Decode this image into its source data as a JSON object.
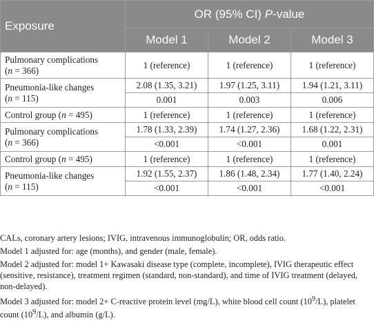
{
  "table": {
    "header": {
      "exposure": "Exposure",
      "or_pre": "OR (95% CI) ",
      "or_italic": "P",
      "or_post": "-value",
      "models": [
        "Model 1",
        "Model 2",
        "Model 3"
      ]
    },
    "rows": {
      "r1": {
        "label": "Pulmonary complications",
        "n_pre": "(",
        "n_var": "n",
        "n_post": " = 366)",
        "v": [
          "1 (reference)",
          "1 (reference)",
          "1 (reference)"
        ]
      },
      "r2": {
        "label": "Pneumonia-like changes",
        "n_pre": "(",
        "n_var": "n",
        "n_post": " = 115)",
        "or": [
          "2.08 (1.35, 3.21)",
          "1.97 (1.25, 3.11)",
          "1.94 (1.21, 3.11)"
        ],
        "p": [
          "0.001",
          "0.003",
          "0.006"
        ]
      },
      "r3": {
        "label_pre": "Control group (",
        "n_var": "n",
        "label_post": " = 495)",
        "v": [
          "1 (reference)",
          "1 (reference)",
          "1 (reference)"
        ]
      },
      "r4": {
        "label": "Pulmonary complications",
        "n_pre": "(",
        "n_var": "n",
        "n_post": " = 366)",
        "or": [
          "1.78 (1.33, 2.39)",
          "1.74 (1.27, 2.36)",
          "1.68 (1.22, 2.31)"
        ],
        "p": [
          "<0.001",
          "<0.001",
          "0.001"
        ]
      },
      "r5": {
        "label_pre": "Control group (",
        "n_var": "n",
        "label_post": " = 495)",
        "v": [
          "1 (reference)",
          "1 (reference)",
          "1 (reference)"
        ]
      },
      "r6": {
        "label": "Pneumonia-like changes",
        "n_pre": "(",
        "n_var": "n",
        "n_post": " = 115)",
        "or": [
          "1.92 (1.55, 2.37)",
          "1.86 (1.48, 2.34)",
          "1.77 (1.40, 2.24)"
        ],
        "p": [
          "<0.001",
          "<0.001",
          "<0.001"
        ]
      }
    }
  },
  "notes": {
    "abbrev": "CALs, coronary artery lesions; IVIG, intravenous immunoglobulin; OR, odds ratio.",
    "model1": "Model 1 adjusted for: age (months), and gender (male, female).",
    "model2": "Model 2 adjusted for: model 1+ Kawasaki disease type (complete, incomplete), IVIG therapeutic effect (sensitive, resistance), treatment regimen (standard, non-standard), and time of IVIG treatment (delayed, non-delayed).",
    "model3_a": "Model 3 adjusted for: model 2+ C-reactive protein level (mg/L), white blood cell count (10",
    "model3_sup": "9",
    "model3_b": "/L), platelet count (10",
    "model3_sup2": "9",
    "model3_c": "/L), and albumin (g/L)."
  }
}
